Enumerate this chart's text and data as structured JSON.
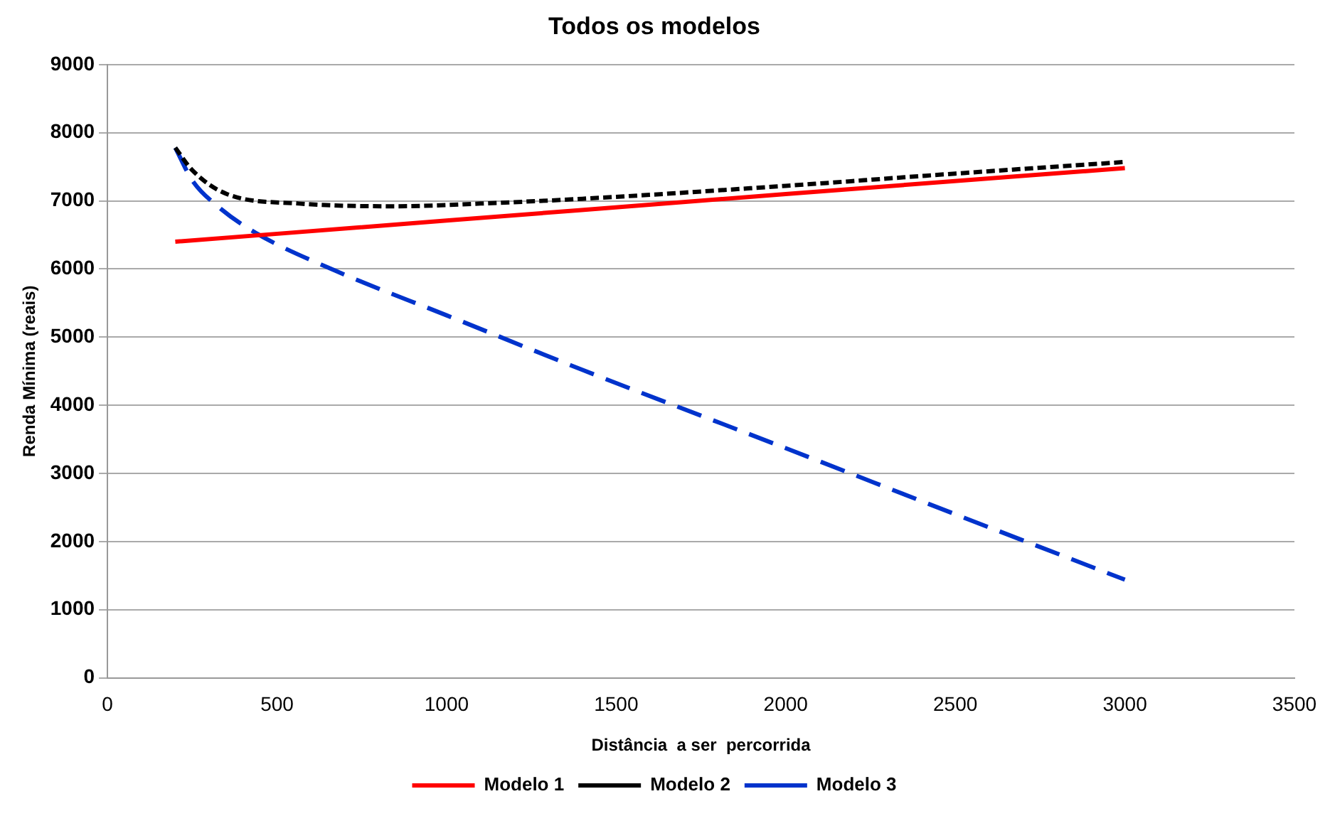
{
  "chart_data": {
    "type": "line",
    "title": "Todos os modelos",
    "xlabel": "Distância  a ser  percorrida",
    "ylabel": "Renda Mínima (reais)",
    "xlim": [
      0,
      3500
    ],
    "xticks": [
      0,
      500,
      1000,
      1500,
      2000,
      2500,
      3000,
      3500
    ],
    "ylim": [
      0,
      9000
    ],
    "yticks": [
      0,
      1000,
      2000,
      3000,
      4000,
      5000,
      6000,
      7000,
      8000,
      9000
    ],
    "grid": "y",
    "legend": "bottom",
    "marker": "none",
    "series": [
      {
        "name": "Modelo 1",
        "color": "#ff0000",
        "line_style": "solid",
        "x": [
          200,
          1000,
          2000,
          3000
        ],
        "values": [
          6400,
          6710,
          7100,
          7480
        ]
      },
      {
        "name": "Modelo 2",
        "color": "#000000",
        "line_style": "dotted",
        "x": [
          200,
          250,
          352,
          565,
          850,
          1100,
          1400,
          2000,
          2500,
          3000
        ],
        "values": [
          7780,
          7450,
          7100,
          6960,
          6920,
          6960,
          7030,
          7220,
          7400,
          7570
        ]
      },
      {
        "name": "Modelo 3",
        "color": "#0033cc",
        "line_style": "dashed",
        "x": [
          200,
          250,
          325,
          437,
          679,
          1000,
          1400,
          2000,
          2500,
          3000
        ],
        "values": [
          7780,
          7300,
          6920,
          6530,
          5960,
          5320,
          4520,
          3370,
          2400,
          1440
        ]
      }
    ]
  }
}
